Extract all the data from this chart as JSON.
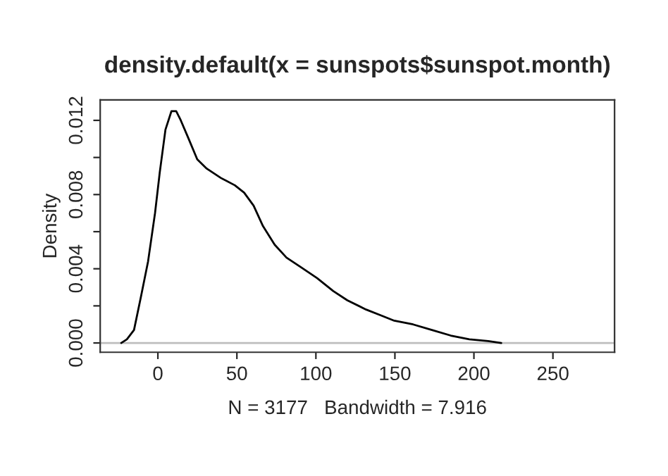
{
  "chart_data": {
    "type": "line",
    "title": "density.default(x = sunspots$sunspot.month)",
    "xlabel": "N = 3177   Bandwidth = 7.916",
    "ylabel": "Density",
    "series": [
      {
        "color": "#000000",
        "x": [
          -23.2,
          -19.6,
          -15.1,
          -10.7,
          -6.2,
          -1.8,
          1.2,
          4.8,
          8.6,
          11.6,
          14.5,
          19.0,
          24.9,
          30.9,
          39.8,
          48.7,
          54.6,
          60.6,
          66.5,
          73.9,
          81.4,
          90.3,
          100.7,
          111.0,
          119.9,
          131.8,
          140.7,
          149.6,
          161.5,
          173.4,
          185.3,
          197.1,
          209.0,
          217.3
        ],
        "values": [
          0.0,
          0.0002,
          0.0007,
          0.0025,
          0.0044,
          0.007,
          0.0092,
          0.0115,
          0.0125,
          0.0125,
          0.012,
          0.0111,
          0.0099,
          0.0094,
          0.0089,
          0.0085,
          0.0081,
          0.0074,
          0.0063,
          0.0053,
          0.0046,
          0.0041,
          0.0035,
          0.0028,
          0.0023,
          0.0018,
          0.0015,
          0.0012,
          0.001,
          0.0007,
          0.0004,
          0.0002,
          0.0001,
          0.0
        ]
      }
    ],
    "xlim": [
      -36.5,
      289
    ],
    "xticks": [
      0,
      50,
      100,
      150,
      200,
      250
    ],
    "ylim": [
      -0.0005,
      0.0131
    ],
    "yticks": [
      {
        "value": 0,
        "label": "0.000"
      },
      {
        "value": 0.002,
        "label": null
      },
      {
        "value": 0.004,
        "label": "0.004"
      },
      {
        "value": 0.006,
        "label": null
      },
      {
        "value": 0.008,
        "label": "0.008"
      },
      {
        "value": 0.01,
        "label": null
      },
      {
        "value": 0.012,
        "label": "0.012"
      }
    ],
    "ref_lines": [
      {
        "axis": "y",
        "value": 0,
        "color": "#bebebe"
      }
    ],
    "grid": false,
    "line_style": "solid",
    "marker": "none"
  }
}
